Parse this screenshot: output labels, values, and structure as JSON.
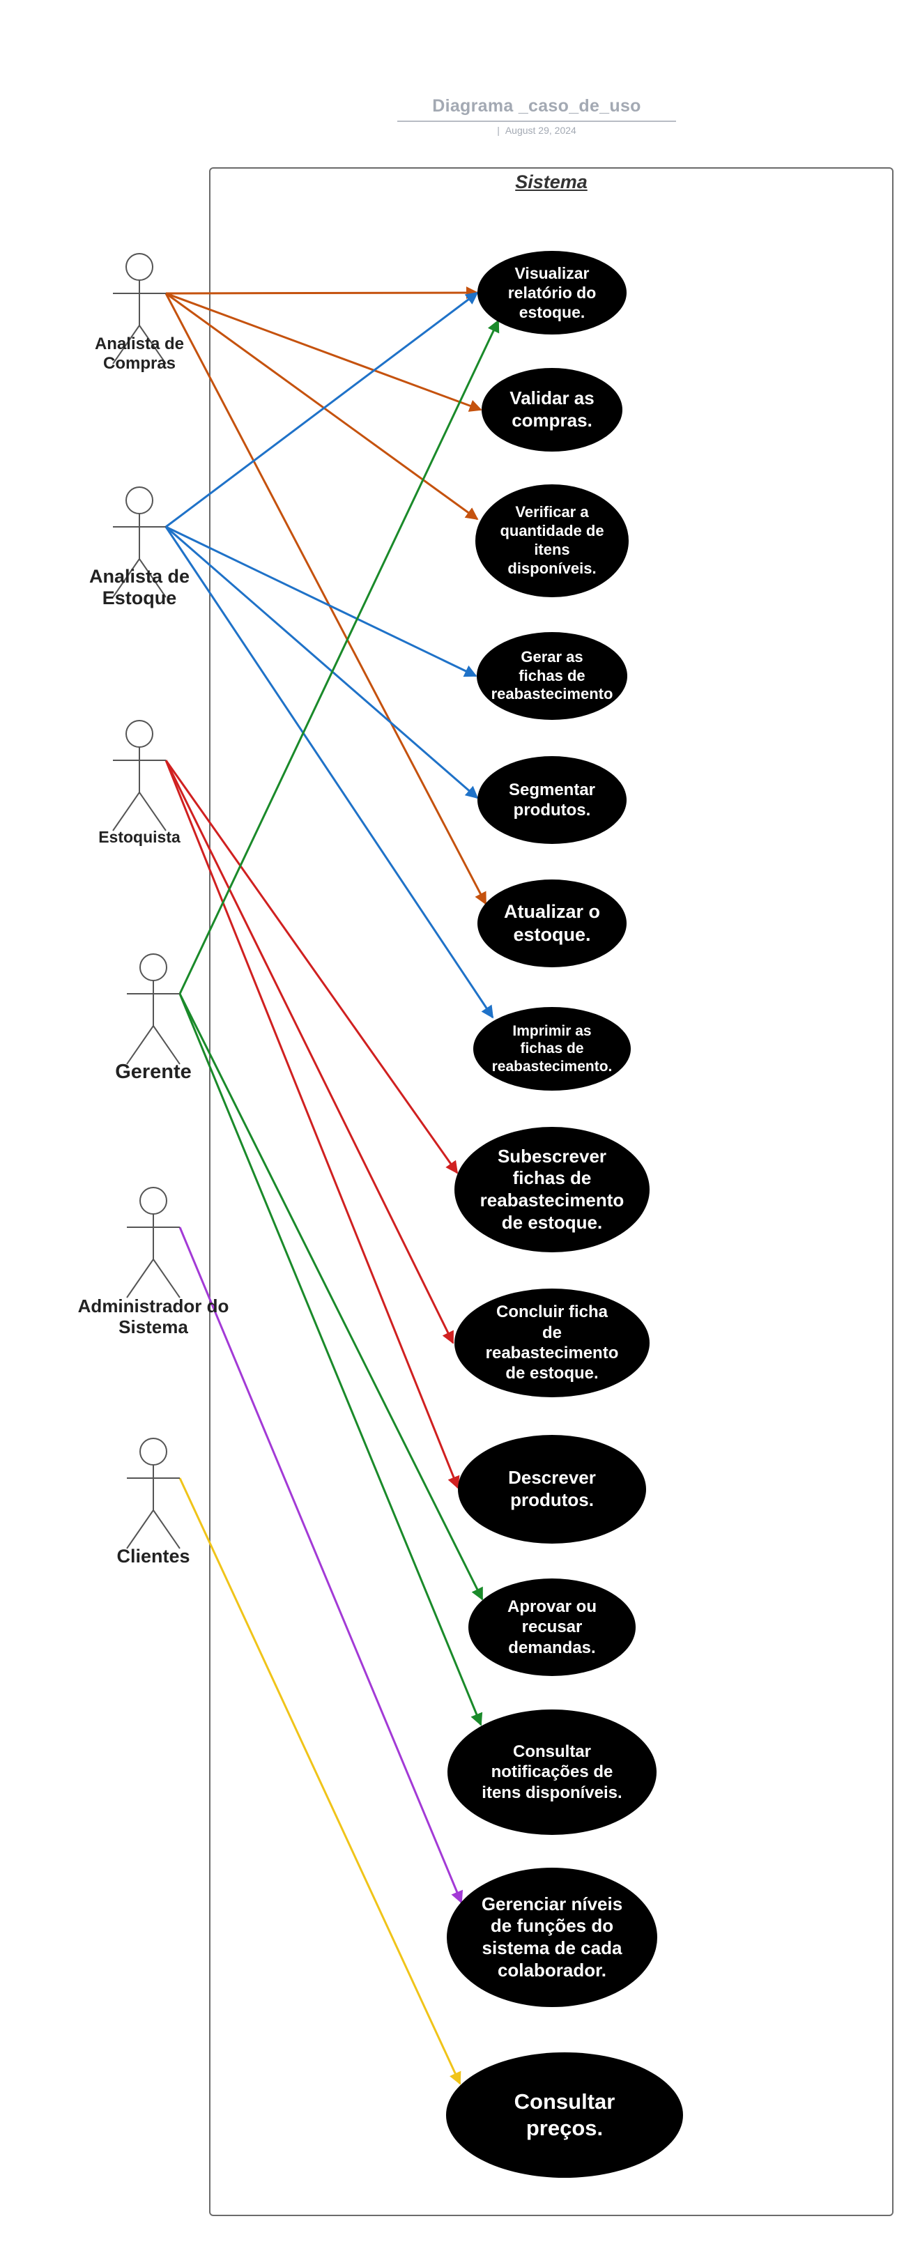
{
  "header": {
    "title": "Diagrama _caso_de_uso",
    "date": "August 29, 2024"
  },
  "system": {
    "label": "Sistema"
  },
  "colors": {
    "analista_compras": "#c5520e",
    "analista_estoque": "#1f72c8",
    "estoquista": "#d02020",
    "gerente": "#1a8a2a",
    "administrador": "#a33ad6",
    "clientes": "#f0c419",
    "usecase_fill": "#000000",
    "actor_stroke": "#555555"
  },
  "actors": [
    {
      "id": "analista_compras",
      "label": "Analista de\nCompras"
    },
    {
      "id": "analista_estoque",
      "label": "Analista de\nEstoque"
    },
    {
      "id": "estoquista",
      "label": "Estoquista"
    },
    {
      "id": "gerente",
      "label": "Gerente"
    },
    {
      "id": "administrador",
      "label": "Administrador do\nSistema"
    },
    {
      "id": "clientes",
      "label": "Clientes"
    }
  ],
  "use_cases": [
    {
      "id": "uc1",
      "label": "Visualizar\nrelatório do\nestoque."
    },
    {
      "id": "uc2",
      "label": "Validar as\ncompras."
    },
    {
      "id": "uc3",
      "label": "Verificar a\nquantidade de\nitens\ndisponíveis."
    },
    {
      "id": "uc4",
      "label": "Gerar as\nfichas de\nreabastecimento"
    },
    {
      "id": "uc5",
      "label": "Segmentar\nprodutos."
    },
    {
      "id": "uc6",
      "label": "Atualizar o\nestoque."
    },
    {
      "id": "uc7",
      "label": "Imprimir as\nfichas de\nreabastecimento."
    },
    {
      "id": "uc8",
      "label": "Subescrever\nfichas de\nreabastecimento\nde estoque."
    },
    {
      "id": "uc9",
      "label": "Concluir ficha\nde\nreabastecimento\nde estoque."
    },
    {
      "id": "uc10",
      "label": "Descrever\nprodutos."
    },
    {
      "id": "uc11",
      "label": "Aprovar ou\nrecusar\ndemandas."
    },
    {
      "id": "uc12",
      "label": "Consultar\nnotificações de\nitens disponíveis."
    },
    {
      "id": "uc13",
      "label": "Gerenciar níveis\nde funções do\nsistema de cada\ncolaborador."
    },
    {
      "id": "uc14",
      "label": "Consultar\npreços."
    }
  ],
  "associations": [
    {
      "from": "analista_compras",
      "to": "uc1"
    },
    {
      "from": "analista_compras",
      "to": "uc2"
    },
    {
      "from": "analista_compras",
      "to": "uc3"
    },
    {
      "from": "analista_compras",
      "to": "uc6"
    },
    {
      "from": "analista_estoque",
      "to": "uc1"
    },
    {
      "from": "analista_estoque",
      "to": "uc4"
    },
    {
      "from": "analista_estoque",
      "to": "uc5"
    },
    {
      "from": "analista_estoque",
      "to": "uc7"
    },
    {
      "from": "estoquista",
      "to": "uc8"
    },
    {
      "from": "estoquista",
      "to": "uc9"
    },
    {
      "from": "estoquista",
      "to": "uc10"
    },
    {
      "from": "gerente",
      "to": "uc1"
    },
    {
      "from": "gerente",
      "to": "uc11"
    },
    {
      "from": "gerente",
      "to": "uc12"
    },
    {
      "from": "administrador",
      "to": "uc13"
    },
    {
      "from": "clientes",
      "to": "uc14"
    }
  ]
}
